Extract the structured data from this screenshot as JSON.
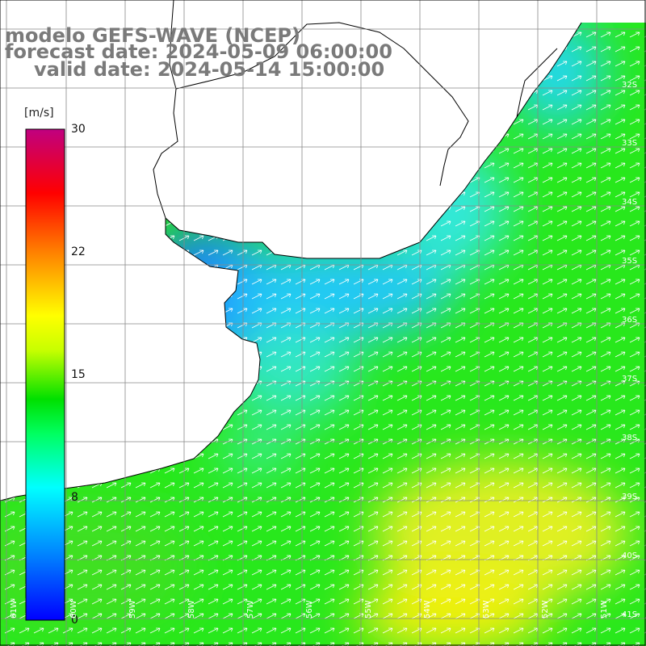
{
  "title": {
    "line1": "modelo GEFS-WAVE (NCEP)",
    "line2": "forecast date: 2024-05-09 06:00:00",
    "line3": "valid date: 2024-05-14 15:00:00"
  },
  "colorbar": {
    "unit": "[m/s]",
    "ticks": [
      "30",
      "22",
      "15",
      "8",
      "0"
    ],
    "tick_values": [
      30,
      22,
      15,
      8,
      0
    ],
    "range": [
      0,
      30
    ],
    "colors": [
      "#0000ff",
      "#00c8ff",
      "#00ffff",
      "#00ff60",
      "#00e000",
      "#ffff00",
      "#ff8000",
      "#ff0000",
      "#c00080"
    ]
  },
  "lat_labels": [
    "32S",
    "33S",
    "34S",
    "35S",
    "36S",
    "37S",
    "38S",
    "39S",
    "40S",
    "41S"
  ],
  "lon_labels": [
    "61W",
    "60W",
    "59W",
    "58W",
    "57W",
    "56W",
    "55W",
    "54W",
    "53W",
    "52W",
    "51W"
  ],
  "colors": {
    "land": "#ffffff",
    "coast": "#000000",
    "grid": "#888888",
    "title": "#7a7a7a",
    "arrows": "#ffffff"
  },
  "wind_direction": "southwest"
}
